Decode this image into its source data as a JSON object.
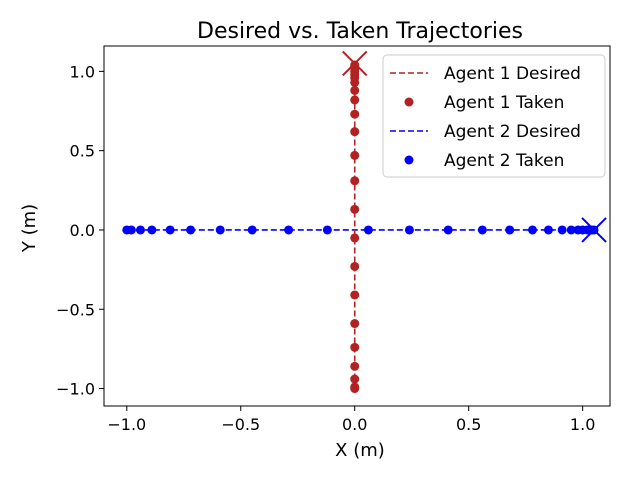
{
  "chart_data": {
    "type": "scatter",
    "title": "Desired vs. Taken Trajectories",
    "xlabel": "X (m)",
    "ylabel": "Y (m)",
    "xlim": [
      -1.1,
      1.12
    ],
    "ylim": [
      -1.11,
      1.16
    ],
    "xticks": [
      -1.0,
      -0.5,
      0.0,
      0.5,
      1.0
    ],
    "xtick_labels": [
      "−1.0",
      "−0.5",
      "0.0",
      "0.5",
      "1.0"
    ],
    "yticks": [
      -1.0,
      -0.5,
      0.0,
      0.5,
      1.0
    ],
    "ytick_labels": [
      "−1.0",
      "−0.5",
      "0.0",
      "0.5",
      "1.0"
    ],
    "grid": false,
    "legend_position": "top-right",
    "series": [
      {
        "name": "Agent 1 Desired",
        "kind": "dashed-line",
        "color": "#b22222",
        "x": [
          0.0,
          0.0
        ],
        "y": [
          -1.0,
          1.05
        ]
      },
      {
        "name": "Agent 1 Taken",
        "kind": "points",
        "color": "#b22222",
        "x": [
          0.0,
          0.0,
          0.0,
          0.0,
          0.0,
          0.0,
          0.0,
          0.0,
          0.0,
          0.0,
          0.0,
          0.0,
          0.0,
          0.0,
          0.0,
          0.0,
          0.0,
          0.0,
          0.0,
          0.0,
          0.0,
          0.0,
          0.0
        ],
        "y": [
          -1.0,
          -0.99,
          -0.94,
          -0.86,
          -0.74,
          -0.59,
          -0.41,
          -0.23,
          -0.05,
          0.13,
          0.31,
          0.47,
          0.62,
          0.73,
          0.82,
          0.88,
          0.93,
          0.96,
          0.98,
          1.0,
          1.02,
          1.03,
          1.04
        ]
      },
      {
        "name": "Agent 2 Desired",
        "kind": "dashed-line",
        "color": "#0000ff",
        "x": [
          -1.0,
          1.05
        ],
        "y": [
          0.0,
          0.0
        ]
      },
      {
        "name": "Agent 2 Taken",
        "kind": "points",
        "color": "#0000ff",
        "x": [
          -1.0,
          -0.98,
          -0.94,
          -0.89,
          -0.81,
          -0.72,
          -0.59,
          -0.45,
          -0.29,
          -0.12,
          0.06,
          0.24,
          0.41,
          0.56,
          0.68,
          0.78,
          0.85,
          0.91,
          0.95,
          0.98,
          1.0,
          1.02,
          1.03,
          1.04,
          1.05
        ],
        "y": [
          0,
          0,
          0,
          0,
          0,
          0,
          0,
          0,
          0,
          0,
          0,
          0,
          0,
          0,
          0,
          0,
          0,
          0,
          0,
          0,
          0,
          0,
          0,
          0,
          0
        ]
      }
    ],
    "goal_markers": [
      {
        "agent": "Agent 1",
        "marker": "x",
        "color": "#b22222",
        "x": 0.0,
        "y": 1.05
      },
      {
        "agent": "Agent 2",
        "marker": "x",
        "color": "#0000ff",
        "x": 1.05,
        "y": 0.0
      }
    ]
  }
}
